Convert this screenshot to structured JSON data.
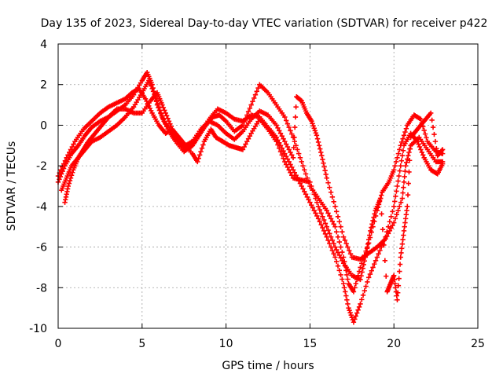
{
  "chart_data": {
    "type": "scatter",
    "title": "Day 135 of 2023, Sidereal Day-to-day VTEC variation (SDTVAR) for receiver p422",
    "xlabel": "GPS time / hours",
    "ylabel": "SDTVAR / TECUs",
    "xlim": [
      0,
      25
    ],
    "ylim": [
      -10,
      4
    ],
    "xticks": [
      0,
      5,
      10,
      15,
      20,
      25
    ],
    "yticks": [
      -10,
      -8,
      -6,
      -4,
      -2,
      0,
      2,
      4
    ],
    "grid": true,
    "marker": "+",
    "color": "#ff0000",
    "series": [
      {
        "points": [
          [
            0.0,
            -2.8
          ],
          [
            0.4,
            -2.0
          ],
          [
            0.8,
            -1.4
          ],
          [
            1.2,
            -1.0
          ],
          [
            1.6,
            -0.5
          ],
          [
            2.0,
            -0.1
          ],
          [
            2.5,
            0.2
          ],
          [
            3.0,
            0.4
          ],
          [
            3.5,
            0.7
          ],
          [
            4.0,
            1.0
          ],
          [
            4.5,
            1.5
          ],
          [
            5.0,
            2.2
          ],
          [
            5.3,
            2.6
          ],
          [
            5.6,
            2.0
          ],
          [
            5.9,
            1.0
          ],
          [
            6.3,
            0.2
          ],
          [
            6.8,
            -0.4
          ],
          [
            7.2,
            -0.8
          ],
          [
            7.6,
            -1.2
          ],
          [
            8.0,
            -1.0
          ],
          [
            8.4,
            -0.5
          ],
          [
            8.8,
            0.0
          ],
          [
            9.2,
            0.4
          ],
          [
            9.6,
            0.5
          ],
          [
            10.0,
            0.2
          ],
          [
            10.5,
            -0.3
          ],
          [
            11.0,
            0.0
          ],
          [
            11.5,
            1.0
          ],
          [
            12.0,
            2.0
          ],
          [
            12.5,
            1.6
          ],
          [
            13.0,
            1.0
          ],
          [
            13.5,
            0.4
          ],
          [
            14.0,
            -0.6
          ],
          [
            14.5,
            -1.8
          ],
          [
            15.0,
            -3.0
          ],
          [
            15.5,
            -3.6
          ],
          [
            16.0,
            -4.2
          ],
          [
            16.5,
            -5.0
          ],
          [
            17.0,
            -6.5
          ],
          [
            17.3,
            -7.8
          ],
          [
            17.6,
            -8.2
          ],
          [
            18.0,
            -7.0
          ],
          [
            18.5,
            -5.8
          ],
          [
            19.0,
            -4.2
          ],
          [
            19.3,
            -3.3
          ],
          [
            19.7,
            -2.8
          ],
          [
            20.0,
            -2.2
          ],
          [
            20.4,
            -1.0
          ],
          [
            20.8,
            0.0
          ],
          [
            21.2,
            0.5
          ],
          [
            21.6,
            0.3
          ],
          [
            22.0,
            -0.8
          ],
          [
            22.5,
            -1.3
          ],
          [
            22.9,
            -1.4
          ]
        ]
      },
      {
        "points": [
          [
            0.2,
            -3.2
          ],
          [
            0.5,
            -2.6
          ],
          [
            0.8,
            -2.0
          ],
          [
            1.2,
            -1.6
          ],
          [
            1.6,
            -1.2
          ],
          [
            2.0,
            -0.8
          ],
          [
            2.5,
            -0.6
          ],
          [
            3.0,
            -0.3
          ],
          [
            3.5,
            0.0
          ],
          [
            4.0,
            0.4
          ],
          [
            4.5,
            0.9
          ],
          [
            5.0,
            1.6
          ],
          [
            5.4,
            2.2
          ],
          [
            5.8,
            1.4
          ],
          [
            6.2,
            0.4
          ],
          [
            6.6,
            -0.3
          ],
          [
            7.0,
            -0.8
          ],
          [
            7.5,
            -1.3
          ],
          [
            8.0,
            -1.0
          ],
          [
            8.5,
            -0.3
          ],
          [
            9.0,
            0.3
          ],
          [
            9.5,
            0.8
          ],
          [
            10.0,
            0.6
          ],
          [
            10.5,
            0.3
          ],
          [
            11.0,
            0.2
          ],
          [
            11.5,
            0.5
          ],
          [
            12.0,
            0.4
          ],
          [
            12.5,
            -0.1
          ],
          [
            13.0,
            -0.6
          ],
          [
            13.5,
            -1.4
          ],
          [
            14.0,
            -2.2
          ],
          [
            14.5,
            -3.0
          ],
          [
            15.0,
            -3.8
          ],
          [
            15.5,
            -4.6
          ],
          [
            16.0,
            -5.5
          ],
          [
            16.5,
            -6.5
          ],
          [
            17.0,
            -7.8
          ],
          [
            17.3,
            -9.0
          ],
          [
            17.6,
            -9.7
          ],
          [
            18.0,
            -8.8
          ],
          [
            18.5,
            -7.5
          ],
          [
            19.0,
            -6.5
          ],
          [
            19.5,
            -5.5
          ],
          [
            20.0,
            -4.0
          ],
          [
            20.3,
            -2.5
          ],
          [
            20.6,
            -1.0
          ],
          [
            21.0,
            -0.4
          ],
          [
            21.4,
            -0.8
          ],
          [
            21.8,
            -1.6
          ],
          [
            22.2,
            -2.2
          ],
          [
            22.6,
            -2.4
          ],
          [
            22.9,
            -1.9
          ]
        ]
      },
      {
        "points": [
          [
            0.0,
            -2.5
          ],
          [
            0.5,
            -1.6
          ],
          [
            1.0,
            -0.8
          ],
          [
            1.5,
            -0.2
          ],
          [
            2.0,
            0.2
          ],
          [
            2.5,
            0.6
          ],
          [
            3.0,
            0.9
          ],
          [
            3.5,
            1.1
          ],
          [
            4.0,
            1.3
          ],
          [
            4.4,
            1.6
          ],
          [
            4.8,
            1.8
          ],
          [
            5.2,
            1.3
          ],
          [
            5.6,
            0.6
          ],
          [
            6.0,
            0.0
          ],
          [
            6.4,
            -0.4
          ],
          [
            6.8,
            -0.2
          ],
          [
            7.2,
            -0.6
          ],
          [
            7.6,
            -1.0
          ],
          [
            8.0,
            -0.8
          ],
          [
            8.5,
            -0.2
          ],
          [
            9.0,
            0.2
          ],
          [
            9.5,
            0.0
          ],
          [
            10.0,
            -0.4
          ],
          [
            10.5,
            -0.7
          ],
          [
            11.0,
            -0.3
          ],
          [
            11.5,
            0.3
          ],
          [
            12.0,
            0.7
          ],
          [
            12.5,
            0.5
          ],
          [
            13.0,
            0.0
          ],
          [
            13.5,
            -0.8
          ],
          [
            14.0,
            -1.6
          ],
          [
            14.2,
            1.4
          ],
          [
            14.5,
            1.2
          ],
          [
            14.8,
            0.6
          ],
          [
            15.1,
            0.2
          ],
          [
            15.4,
            -0.5
          ],
          [
            15.7,
            -1.5
          ],
          [
            16.0,
            -2.6
          ],
          [
            16.5,
            -4.0
          ],
          [
            17.0,
            -5.5
          ],
          [
            17.5,
            -6.5
          ],
          [
            18.0,
            -6.6
          ],
          [
            18.5,
            -6.3
          ],
          [
            19.0,
            -6.0
          ],
          [
            19.5,
            -5.6
          ],
          [
            20.0,
            -4.8
          ],
          [
            20.5,
            -3.6
          ],
          [
            20.7,
            -2.0
          ],
          [
            21.0,
            -1.0
          ],
          [
            21.5,
            -0.6
          ],
          [
            22.0,
            -1.2
          ],
          [
            22.5,
            -1.8
          ],
          [
            22.9,
            -1.8
          ]
        ]
      },
      {
        "points": [
          [
            0.4,
            -3.8
          ],
          [
            0.6,
            -3.0
          ],
          [
            0.9,
            -2.2
          ],
          [
            1.2,
            -1.6
          ],
          [
            1.5,
            -1.2
          ],
          [
            1.8,
            -0.8
          ],
          [
            2.2,
            -0.4
          ],
          [
            2.6,
            0.0
          ],
          [
            3.0,
            0.4
          ],
          [
            3.5,
            0.8
          ],
          [
            4.0,
            0.8
          ],
          [
            4.5,
            0.6
          ],
          [
            5.0,
            0.6
          ],
          [
            5.5,
            1.2
          ],
          [
            5.9,
            1.6
          ],
          [
            6.2,
            1.0
          ],
          [
            6.6,
            0.2
          ],
          [
            7.0,
            -0.6
          ],
          [
            7.4,
            -0.9
          ],
          [
            8.0,
            -1.4
          ],
          [
            8.3,
            -1.8
          ],
          [
            8.7,
            -0.8
          ],
          [
            9.1,
            -0.2
          ],
          [
            9.4,
            -0.6
          ],
          [
            9.8,
            -0.8
          ],
          [
            10.2,
            -1.0
          ],
          [
            10.6,
            -1.1
          ],
          [
            11.0,
            -1.2
          ],
          [
            11.5,
            -0.4
          ],
          [
            12.0,
            0.3
          ],
          [
            12.5,
            -0.2
          ],
          [
            13.0,
            -0.8
          ],
          [
            13.5,
            -1.8
          ],
          [
            14.0,
            -2.6
          ],
          [
            14.5,
            -2.7
          ],
          [
            15.0,
            -2.8
          ],
          [
            15.5,
            -4.0
          ],
          [
            16.0,
            -5.0
          ],
          [
            16.5,
            -6.0
          ],
          [
            17.0,
            -6.8
          ],
          [
            17.5,
            -7.4
          ],
          [
            18.0,
            -7.6
          ],
          [
            18.3,
            -6.5
          ],
          [
            18.6,
            -5.2
          ],
          [
            18.9,
            -4.2
          ],
          [
            19.2,
            -3.6
          ],
          [
            19.6,
            -8.2
          ],
          [
            19.8,
            -7.8
          ],
          [
            20.0,
            -7.4
          ],
          [
            20.2,
            -8.6
          ],
          [
            20.4,
            -6.5
          ],
          [
            20.6,
            -5.2
          ],
          [
            20.8,
            -4.0
          ],
          [
            21.0,
            -0.6
          ],
          [
            21.4,
            -0.2
          ],
          [
            21.8,
            0.2
          ],
          [
            22.2,
            0.6
          ],
          [
            22.6,
            -1.5
          ],
          [
            22.9,
            -1.2
          ]
        ]
      }
    ]
  }
}
